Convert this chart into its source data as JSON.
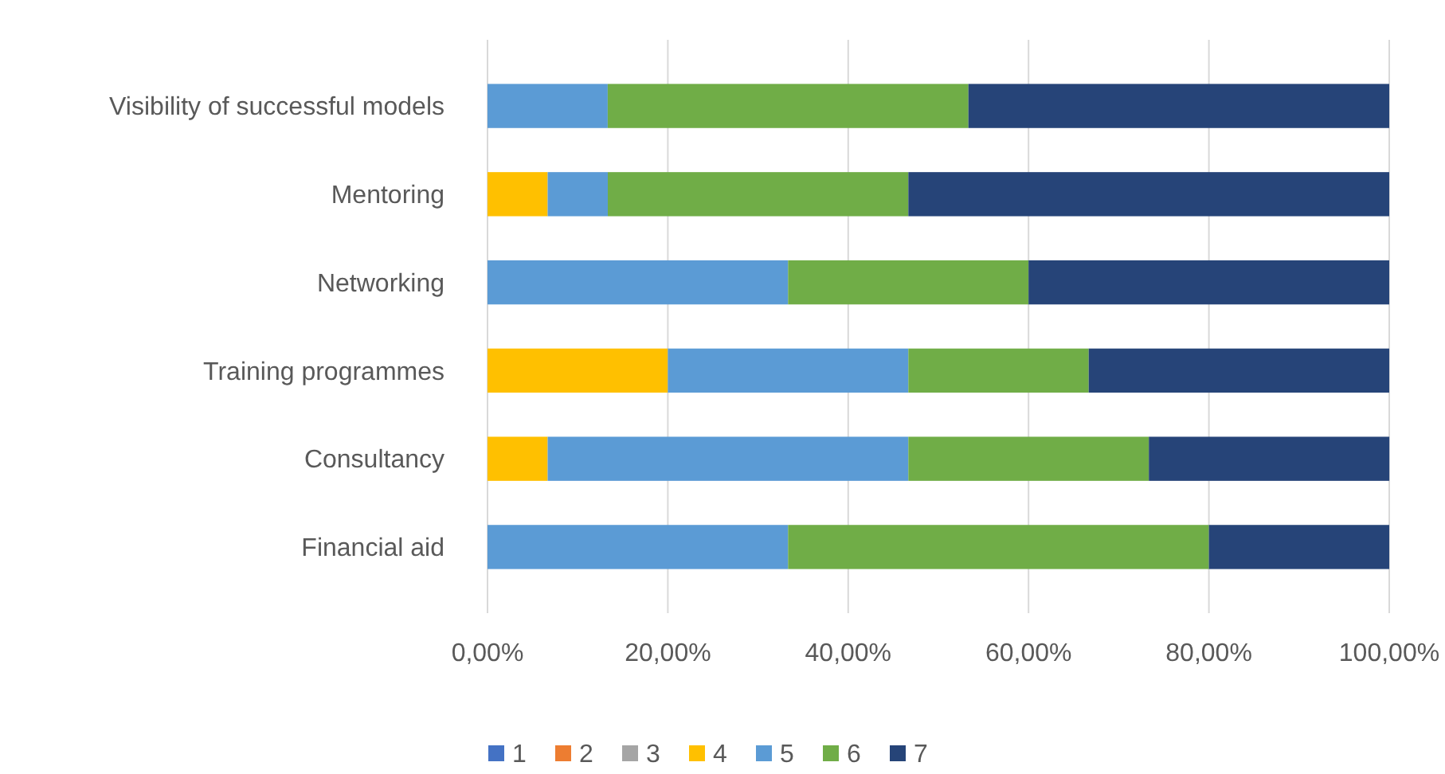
{
  "chart_data": {
    "type": "bar",
    "orientation": "horizontal",
    "stacked": true,
    "categories": [
      "Visibility of successful models",
      "Mentoring",
      "Networking",
      "Training programmes",
      "Consultancy",
      "Financial aid"
    ],
    "series": [
      {
        "name": "1",
        "color": "#4472c4",
        "values": [
          0,
          0,
          0,
          0,
          0,
          0
        ]
      },
      {
        "name": "2",
        "color": "#ed7d31",
        "values": [
          0,
          0,
          0,
          0,
          0,
          0
        ]
      },
      {
        "name": "3",
        "color": "#a5a5a5",
        "values": [
          0,
          0,
          0,
          0,
          0,
          0
        ]
      },
      {
        "name": "4",
        "color": "#ffc000",
        "values": [
          0,
          6.67,
          0,
          20,
          6.67,
          0
        ]
      },
      {
        "name": "5",
        "color": "#5b9bd5",
        "values": [
          13.33,
          6.67,
          33.33,
          26.67,
          40,
          33.33
        ]
      },
      {
        "name": "6",
        "color": "#70ad47",
        "values": [
          40,
          33.33,
          26.67,
          20,
          26.67,
          46.67
        ]
      },
      {
        "name": "7",
        "color": "#264478",
        "values": [
          46.67,
          53.33,
          40,
          33.33,
          26.67,
          20
        ]
      }
    ],
    "xlim": [
      0,
      100
    ],
    "xticks": [
      {
        "value": 0,
        "label": "0,00%"
      },
      {
        "value": 20,
        "label": "20,00%"
      },
      {
        "value": 40,
        "label": "40,00%"
      },
      {
        "value": 60,
        "label": "60,00%"
      },
      {
        "value": 80,
        "label": "80,00%"
      },
      {
        "value": 100,
        "label": "100,00%"
      }
    ],
    "grid": "x",
    "legend": "bottom"
  }
}
